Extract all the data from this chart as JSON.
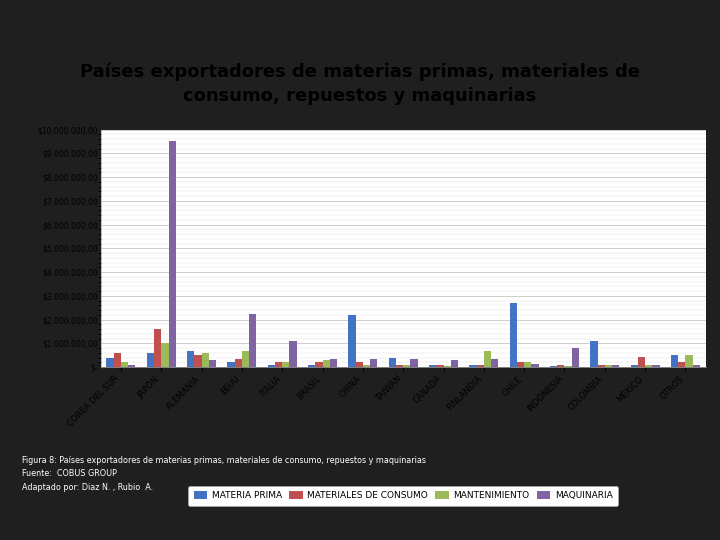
{
  "title": "Países exportadores de materias primas, materiales de\nconsumo, repuestos y maquinarias",
  "title_fontsize": 13,
  "title_fontweight": "bold",
  "categories": [
    "COREA DEL SUR",
    "JAPÓN",
    "ALEMANIA",
    "EEUU",
    "ITALIA",
    "BRASIL",
    "CHINA",
    "TAIWÁN",
    "CANADA",
    "FINLANDIA",
    "CHILE",
    "INDONESIA",
    "COLOMBIA",
    "MÉXICO",
    "OTROS"
  ],
  "series": {
    "MATERIA PRIMA": [
      400000,
      600000,
      700000,
      200000,
      100000,
      100000,
      2200000,
      400000,
      100000,
      100000,
      2700000,
      50000,
      1100000,
      100000,
      500000
    ],
    "MATERIALES DE CONSUMO": [
      600000,
      1600000,
      500000,
      350000,
      200000,
      200000,
      200000,
      100000,
      100000,
      100000,
      200000,
      100000,
      100000,
      450000,
      200000
    ],
    "MANTENIMIENTO": [
      200000,
      1000000,
      600000,
      700000,
      200000,
      300000,
      100000,
      100000,
      50000,
      700000,
      200000,
      50000,
      100000,
      100000,
      500000
    ],
    "MAQUINARIA": [
      100000,
      9500000,
      300000,
      2250000,
      1100000,
      350000,
      350000,
      350000,
      300000,
      350000,
      150000,
      800000,
      100000,
      100000,
      100000
    ]
  },
  "colors": {
    "MATERIA PRIMA": "#4472C4",
    "MATERIALES DE CONSUMO": "#C0504D",
    "MANTENIMIENTO": "#9BBB59",
    "MAQUINARIA": "#8064A2"
  },
  "ylim": [
    0,
    10000000
  ],
  "yticks": [
    0,
    1000000,
    2000000,
    3000000,
    4000000,
    5000000,
    6000000,
    7000000,
    8000000,
    9000000,
    10000000
  ],
  "outer_bg": "#1F1F1F",
  "inner_bg": "#F2F2F2",
  "chart_bg": "#FFFFFF",
  "separator_color": "#008080",
  "title_color": "#000000",
  "footer_text": "Figura 8: Países exportadores de materias primas, materiales de consumo, repuestos y maquinarias\nFuente:  COBUS GROUP\nAdaptado por: Diaz N. , Rubio  A.",
  "footer_color": "#FFFFFF"
}
